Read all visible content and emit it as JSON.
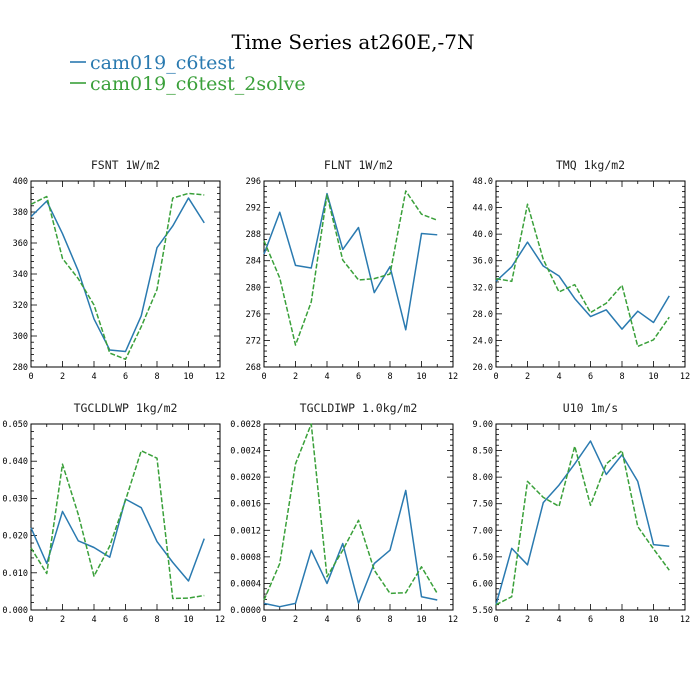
{
  "title": "Time Series at260E,-7N",
  "colors": {
    "series1": "#2a7ab0",
    "series2": "#3aa03a"
  },
  "legend": [
    {
      "name": "cam019_c6test",
      "color": "#2a7ab0",
      "dash": ""
    },
    {
      "name": "cam019_c6test_2solve",
      "color": "#3aa03a",
      "dash": "5,2"
    }
  ],
  "chart_data": [
    {
      "type": "line",
      "title": "FSNT   1W/m2",
      "x": [
        0,
        1,
        2,
        3,
        4,
        5,
        6,
        7,
        8,
        9,
        10,
        11
      ],
      "xlim": [
        0,
        12
      ],
      "xticks": [
        "0",
        "2",
        "4",
        "6",
        "8",
        "10",
        "12"
      ],
      "ylim": [
        280,
        400
      ],
      "yticks": [
        "280",
        "300",
        "320",
        "340",
        "360",
        "380",
        "400"
      ],
      "series": [
        {
          "name": "cam019_c6test",
          "values": [
            377,
            387,
            366,
            342,
            311,
            291,
            290,
            313,
            357,
            371,
            389,
            373
          ]
        },
        {
          "name": "cam019_c6test_2solve",
          "values": [
            385,
            390,
            350,
            337,
            320,
            289,
            285,
            306,
            330,
            389,
            392,
            391
          ]
        }
      ]
    },
    {
      "type": "line",
      "title": "FLNT   1W/m2",
      "x": [
        0,
        1,
        2,
        3,
        4,
        5,
        6,
        7,
        8,
        9,
        10,
        11
      ],
      "xlim": [
        0,
        12
      ],
      "xticks": [
        "0",
        "2",
        "4",
        "6",
        "8",
        "10",
        "12"
      ],
      "ylim": [
        268,
        296
      ],
      "yticks": [
        "268",
        "272",
        "276",
        "280",
        "284",
        "288",
        "292",
        "296"
      ],
      "series": [
        {
          "name": "cam019_c6test",
          "values": [
            285,
            291.3,
            283.3,
            282.9,
            294.1,
            285.7,
            289,
            279.2,
            283.1,
            273.6,
            288.1,
            287.9
          ]
        },
        {
          "name": "cam019_c6test_2solve",
          "values": [
            287,
            281.4,
            271.3,
            277.8,
            293.9,
            284.1,
            281.1,
            281.3,
            282,
            294.5,
            291,
            290.1
          ]
        }
      ]
    },
    {
      "type": "line",
      "title": "TMQ   1kg/m2",
      "x": [
        0,
        1,
        2,
        3,
        4,
        5,
        6,
        7,
        8,
        9,
        10,
        11
      ],
      "xlim": [
        0,
        12
      ],
      "xticks": [
        "0",
        "2",
        "4",
        "6",
        "8",
        "10",
        "12"
      ],
      "ylim": [
        20,
        48
      ],
      "yticks": [
        "20.0",
        "24.0",
        "28.0",
        "32.0",
        "36.0",
        "40.0",
        "44.0",
        "48.0"
      ],
      "series": [
        {
          "name": "cam019_c6test",
          "values": [
            32.9,
            35.1,
            38.8,
            35.2,
            33.7,
            30.3,
            27.6,
            28.6,
            25.7,
            28.4,
            26.7,
            30.7
          ]
        },
        {
          "name": "cam019_c6test_2solve",
          "values": [
            33.3,
            32.9,
            44.5,
            36.2,
            31.3,
            32.4,
            28.2,
            29.6,
            32.3,
            23.1,
            24.1,
            27.5
          ]
        }
      ]
    },
    {
      "type": "line",
      "title": "TGCLDLWP   1kg/m2",
      "x": [
        0,
        1,
        2,
        3,
        4,
        5,
        6,
        7,
        8,
        9,
        10,
        11
      ],
      "xlim": [
        0,
        12
      ],
      "xticks": [
        "0",
        "2",
        "4",
        "6",
        "8",
        "10",
        "12"
      ],
      "ylim": [
        0,
        0.05
      ],
      "yticks": [
        "0.000",
        "0.010",
        "0.020",
        "0.030",
        "0.040",
        "0.050"
      ],
      "series": [
        {
          "name": "cam019_c6test",
          "values": [
            0.0221,
            0.0125,
            0.0265,
            0.0186,
            0.0168,
            0.0142,
            0.0298,
            0.0275,
            0.0184,
            0.0128,
            0.0078,
            0.0192
          ]
        },
        {
          "name": "cam019_c6test_2solve",
          "values": [
            0.0167,
            0.0098,
            0.0392,
            0.0257,
            0.0091,
            0.0172,
            0.0295,
            0.0428,
            0.0408,
            0.0031,
            0.0032,
            0.0039
          ]
        }
      ]
    },
    {
      "type": "line",
      "title": "TGCLDIWP   1.0kg/m2",
      "x": [
        0,
        1,
        2,
        3,
        4,
        5,
        6,
        7,
        8,
        9,
        10,
        11
      ],
      "xlim": [
        0,
        12
      ],
      "xticks": [
        "0",
        "2",
        "4",
        "6",
        "8",
        "10",
        "12"
      ],
      "ylim": [
        0,
        0.0028
      ],
      "yticks": [
        "0.0000",
        "0.0004",
        "0.0008",
        "0.0012",
        "0.0016",
        "0.0020",
        "0.0024",
        "0.0028"
      ],
      "series": [
        {
          "name": "cam019_c6test",
          "values": [
            0.0001,
            5e-05,
            0.0001,
            0.0009,
            0.0004,
            0.001,
            0.0001,
            0.0007,
            0.0009,
            0.0018,
            0.0002,
            0.00015
          ]
        },
        {
          "name": "cam019_c6test_2solve",
          "values": [
            0.00015,
            0.0007,
            0.0022,
            0.0028,
            0.0005,
            0.0009,
            0.00135,
            0.0006,
            0.00025,
            0.00026,
            0.00065,
            0.00025
          ]
        }
      ]
    },
    {
      "type": "line",
      "title": "U10   1m/s",
      "x": [
        0,
        1,
        2,
        3,
        4,
        5,
        6,
        7,
        8,
        9,
        10,
        11
      ],
      "xlim": [
        0,
        12
      ],
      "xticks": [
        "0",
        "2",
        "4",
        "6",
        "8",
        "10",
        "12"
      ],
      "ylim": [
        5.5,
        9.0
      ],
      "yticks": [
        "5.50",
        "6.00",
        "6.50",
        "7.00",
        "7.50",
        "8.00",
        "8.50",
        "9.00"
      ],
      "series": [
        {
          "name": "cam019_c6test",
          "values": [
            5.6,
            6.66,
            6.35,
            7.52,
            7.85,
            8.25,
            8.68,
            8.05,
            8.42,
            7.92,
            6.73,
            6.7
          ]
        },
        {
          "name": "cam019_c6test_2solve",
          "values": [
            5.6,
            5.75,
            7.92,
            7.62,
            7.45,
            8.58,
            7.47,
            8.25,
            8.5,
            7.07,
            6.65,
            6.25
          ]
        }
      ]
    }
  ]
}
